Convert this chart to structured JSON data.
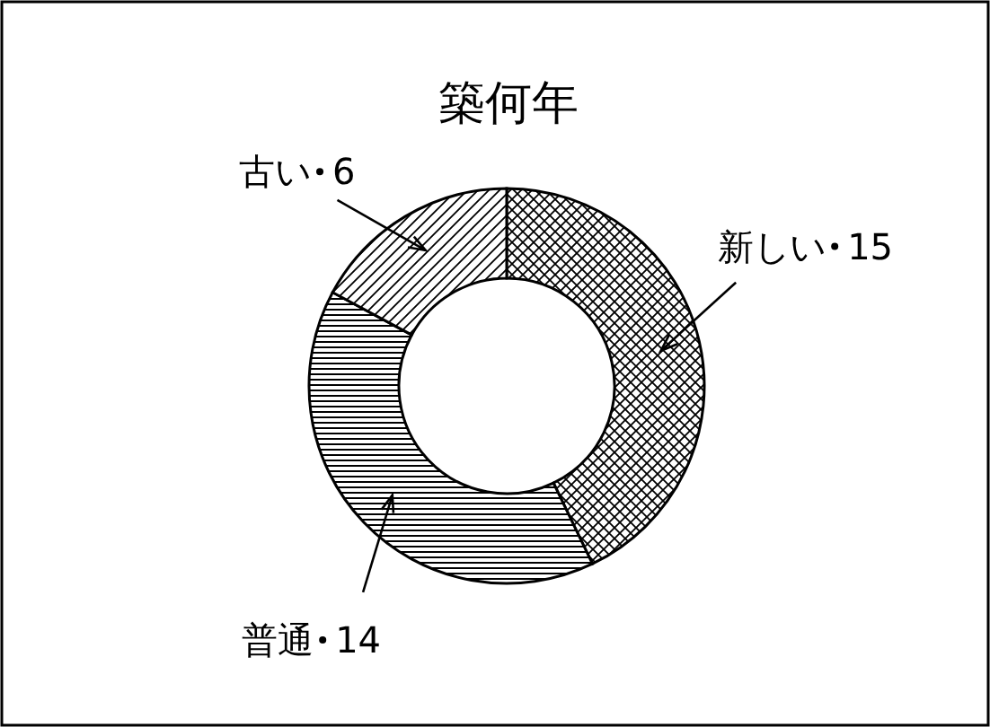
{
  "chart_data": {
    "type": "donut",
    "title": "築何年",
    "categories": [
      "新しい",
      "普通",
      "古い"
    ],
    "values": [
      15,
      14,
      6
    ],
    "colors": [
      "#000000",
      "#000000",
      "#000000"
    ],
    "data_labels": true
  }
}
